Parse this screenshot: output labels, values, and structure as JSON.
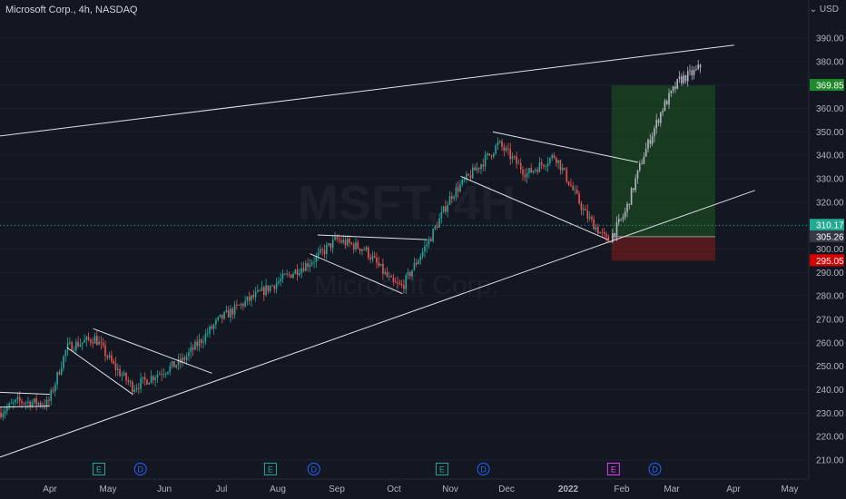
{
  "header": {
    "title": "Microsoft Corp., 4h, NASDAQ",
    "currency": "USD"
  },
  "watermark": {
    "ticker": "MSFT, 4H",
    "name": "Microsoft Corp."
  },
  "colors": {
    "background": "#131722",
    "up": "#26a69a",
    "down": "#ef5350",
    "trendline": "#e0e3eb",
    "gain_zone": "#1b5e20",
    "loss_zone": "#7f1d1d",
    "last_price": "#1e8a2a",
    "stop": "#d50000",
    "current": "#22ab94"
  },
  "chart_data": {
    "type": "candlestick",
    "title": "Microsoft Corp., 4h, NASDAQ",
    "ylim": [
      200,
      395
    ],
    "y_ticks": [
      "390.00",
      "380.00",
      "370.00",
      "360.00",
      "350.00",
      "340.00",
      "330.00",
      "320.00",
      "310.00",
      "300.00",
      "290.00",
      "280.00",
      "270.00",
      "260.00",
      "250.00",
      "240.00",
      "230.00",
      "220.00",
      "210.00"
    ],
    "x_ticks": [
      "Apr",
      "May",
      "Jun",
      "Jul",
      "Aug",
      "Sep",
      "Oct",
      "Nov",
      "Dec",
      "2022",
      "Feb",
      "Mar",
      "Apr",
      "May"
    ],
    "price_labels": [
      {
        "label": "369.85",
        "value": 369.85,
        "role": "target"
      },
      {
        "label": "310.17",
        "value": 310.17,
        "role": "current"
      },
      {
        "label": "305.26",
        "value": 305.26,
        "role": "entry"
      },
      {
        "label": "295.05",
        "value": 295.05,
        "role": "stop"
      }
    ],
    "price_path": [
      {
        "date": "2021-03-01",
        "price": 228
      },
      {
        "date": "2021-03-15",
        "price": 235
      },
      {
        "date": "2021-03-31",
        "price": 234
      },
      {
        "date": "2021-04-10",
        "price": 258
      },
      {
        "date": "2021-04-25",
        "price": 262
      },
      {
        "date": "2021-05-05",
        "price": 250
      },
      {
        "date": "2021-05-15",
        "price": 241
      },
      {
        "date": "2021-05-31",
        "price": 248
      },
      {
        "date": "2021-06-10",
        "price": 252
      },
      {
        "date": "2021-06-30",
        "price": 270
      },
      {
        "date": "2021-07-15",
        "price": 278
      },
      {
        "date": "2021-07-31",
        "price": 286
      },
      {
        "date": "2021-08-20",
        "price": 296
      },
      {
        "date": "2021-08-31",
        "price": 304
      },
      {
        "date": "2021-09-15",
        "price": 300
      },
      {
        "date": "2021-09-30",
        "price": 285
      },
      {
        "date": "2021-10-05",
        "price": 284
      },
      {
        "date": "2021-10-20",
        "price": 305
      },
      {
        "date": "2021-10-31",
        "price": 323
      },
      {
        "date": "2021-11-20",
        "price": 340
      },
      {
        "date": "2021-11-25",
        "price": 345
      },
      {
        "date": "2021-12-10",
        "price": 332
      },
      {
        "date": "2021-12-25",
        "price": 340
      },
      {
        "date": "2022-01-10",
        "price": 315
      },
      {
        "date": "2022-01-22",
        "price": 303
      },
      {
        "date": "2022-01-31",
        "price": 315
      },
      {
        "date": "2022-02-10",
        "price": 340
      },
      {
        "date": "2022-02-20",
        "price": 360
      },
      {
        "date": "2022-03-01",
        "price": 372
      },
      {
        "date": "2022-03-10",
        "price": 376
      },
      {
        "date": "2022-03-18",
        "price": 384
      },
      {
        "date": "2022-03-22",
        "price": 370
      }
    ],
    "channel": {
      "upper": [
        {
          "date": "2021-02-01",
          "price": 345
        },
        {
          "date": "2022-03-30",
          "price": 387
        }
      ],
      "lower": [
        {
          "date": "2021-02-01",
          "price": 202
        },
        {
          "date": "2022-04-10",
          "price": 325
        }
      ]
    },
    "patterns": [
      {
        "kind": "wedge",
        "top": [
          {
            "date": "2021-02-01",
            "price": 240
          },
          {
            "date": "2021-04-01",
            "price": 238
          }
        ],
        "bottom": [
          {
            "date": "2021-02-01",
            "price": 232
          },
          {
            "date": "2021-04-01",
            "price": 233
          }
        ]
      },
      {
        "kind": "wedge",
        "top": [
          {
            "date": "2021-04-24",
            "price": 266
          },
          {
            "date": "2021-06-26",
            "price": 247
          }
        ],
        "bottom": [
          {
            "date": "2021-04-10",
            "price": 258
          },
          {
            "date": "2021-05-15",
            "price": 238
          }
        ]
      },
      {
        "kind": "wedge",
        "top": [
          {
            "date": "2021-08-21",
            "price": 306
          },
          {
            "date": "2021-10-18",
            "price": 304
          }
        ],
        "bottom": [
          {
            "date": "2021-08-17",
            "price": 298
          },
          {
            "date": "2021-10-05",
            "price": 281
          }
        ]
      },
      {
        "kind": "wedge",
        "top": [
          {
            "date": "2021-11-22",
            "price": 350
          },
          {
            "date": "2022-02-07",
            "price": 337
          }
        ],
        "bottom": [
          {
            "date": "2021-11-05",
            "price": 331
          },
          {
            "date": "2022-01-22",
            "price": 304
          }
        ]
      }
    ],
    "position": {
      "entry_date": "2022-01-24",
      "exit_date": "2022-03-20",
      "target": 369.85,
      "entry": 305.26,
      "stop": 295.05
    },
    "events": [
      {
        "date": "2021-04-27",
        "label": "E",
        "type": "earnings"
      },
      {
        "date": "2021-05-19",
        "label": "D",
        "type": "dividend"
      },
      {
        "date": "2021-07-27",
        "label": "E",
        "type": "earnings"
      },
      {
        "date": "2021-08-19",
        "label": "D",
        "type": "dividend"
      },
      {
        "date": "2021-10-26",
        "label": "E",
        "type": "earnings"
      },
      {
        "date": "2021-11-17",
        "label": "D",
        "type": "dividend"
      },
      {
        "date": "2022-01-25",
        "label": "E",
        "type": "earnings"
      },
      {
        "date": "2022-02-16",
        "label": "D",
        "type": "dividend"
      }
    ]
  }
}
